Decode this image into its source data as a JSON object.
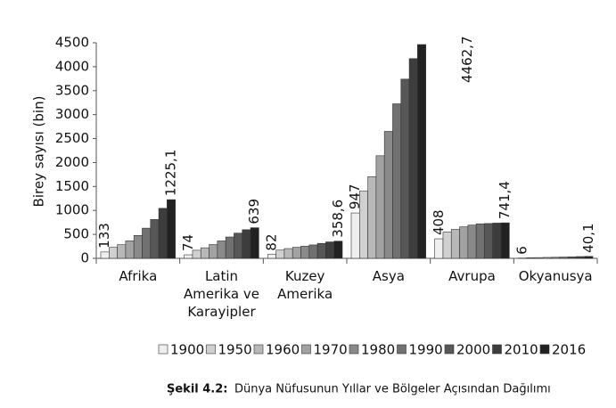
{
  "chart_data": {
    "type": "bar",
    "y_label": "Birey sayısı (bin)",
    "caption_label": "Şekil 4.2:",
    "caption_text": "Dünya Nüfusunun Yıllar ve Bölgeler Açısından Dağılımı",
    "categories": [
      "Afrika",
      "Latin Amerika ve Karayipler",
      "Kuzey Amerika",
      "Asya",
      "Avrupa",
      "Okyanusya"
    ],
    "ylim": [
      0,
      4500
    ],
    "yticks": [
      0,
      500,
      1000,
      1500,
      2000,
      2500,
      3000,
      3500,
      4000,
      4500
    ],
    "grid": false,
    "series": [
      {
        "name": "1900",
        "color": "#efefef",
        "values": [
          133,
          74,
          82,
          947,
          408,
          6
        ],
        "value_labels": [
          "133",
          "74",
          "82",
          "947",
          "408",
          "6"
        ]
      },
      {
        "name": "1950",
        "color": "#d0d0d0",
        "values": [
          229,
          169,
          172,
          1404,
          549,
          12.7
        ]
      },
      {
        "name": "1960",
        "color": "#b8b8b8",
        "values": [
          285,
          220,
          204,
          1705,
          605,
          15.8
        ]
      },
      {
        "name": "1970",
        "color": "#a2a2a2",
        "values": [
          366,
          288,
          231,
          2142,
          657,
          19.7
        ]
      },
      {
        "name": "1980",
        "color": "#8a8a8a",
        "values": [
          478,
          364,
          254,
          2650,
          694,
          22.9
        ]
      },
      {
        "name": "1990",
        "color": "#717171",
        "values": [
          630,
          446,
          280,
          3226,
          721,
          27
        ]
      },
      {
        "name": "2000",
        "color": "#575757",
        "values": [
          811,
          526,
          312,
          3741,
          727,
          31
        ]
      },
      {
        "name": "2010",
        "color": "#3d3d3d",
        "values": [
          1044,
          598,
          343,
          4169,
          736,
          36.7
        ]
      },
      {
        "name": "2016",
        "color": "#222222",
        "values": [
          1225.1,
          639,
          358.6,
          4462.7,
          741.4,
          40.1
        ],
        "value_labels": [
          "1225,1",
          "639",
          "358,6",
          "4462,7",
          "741,4",
          "40,1"
        ]
      }
    ]
  }
}
